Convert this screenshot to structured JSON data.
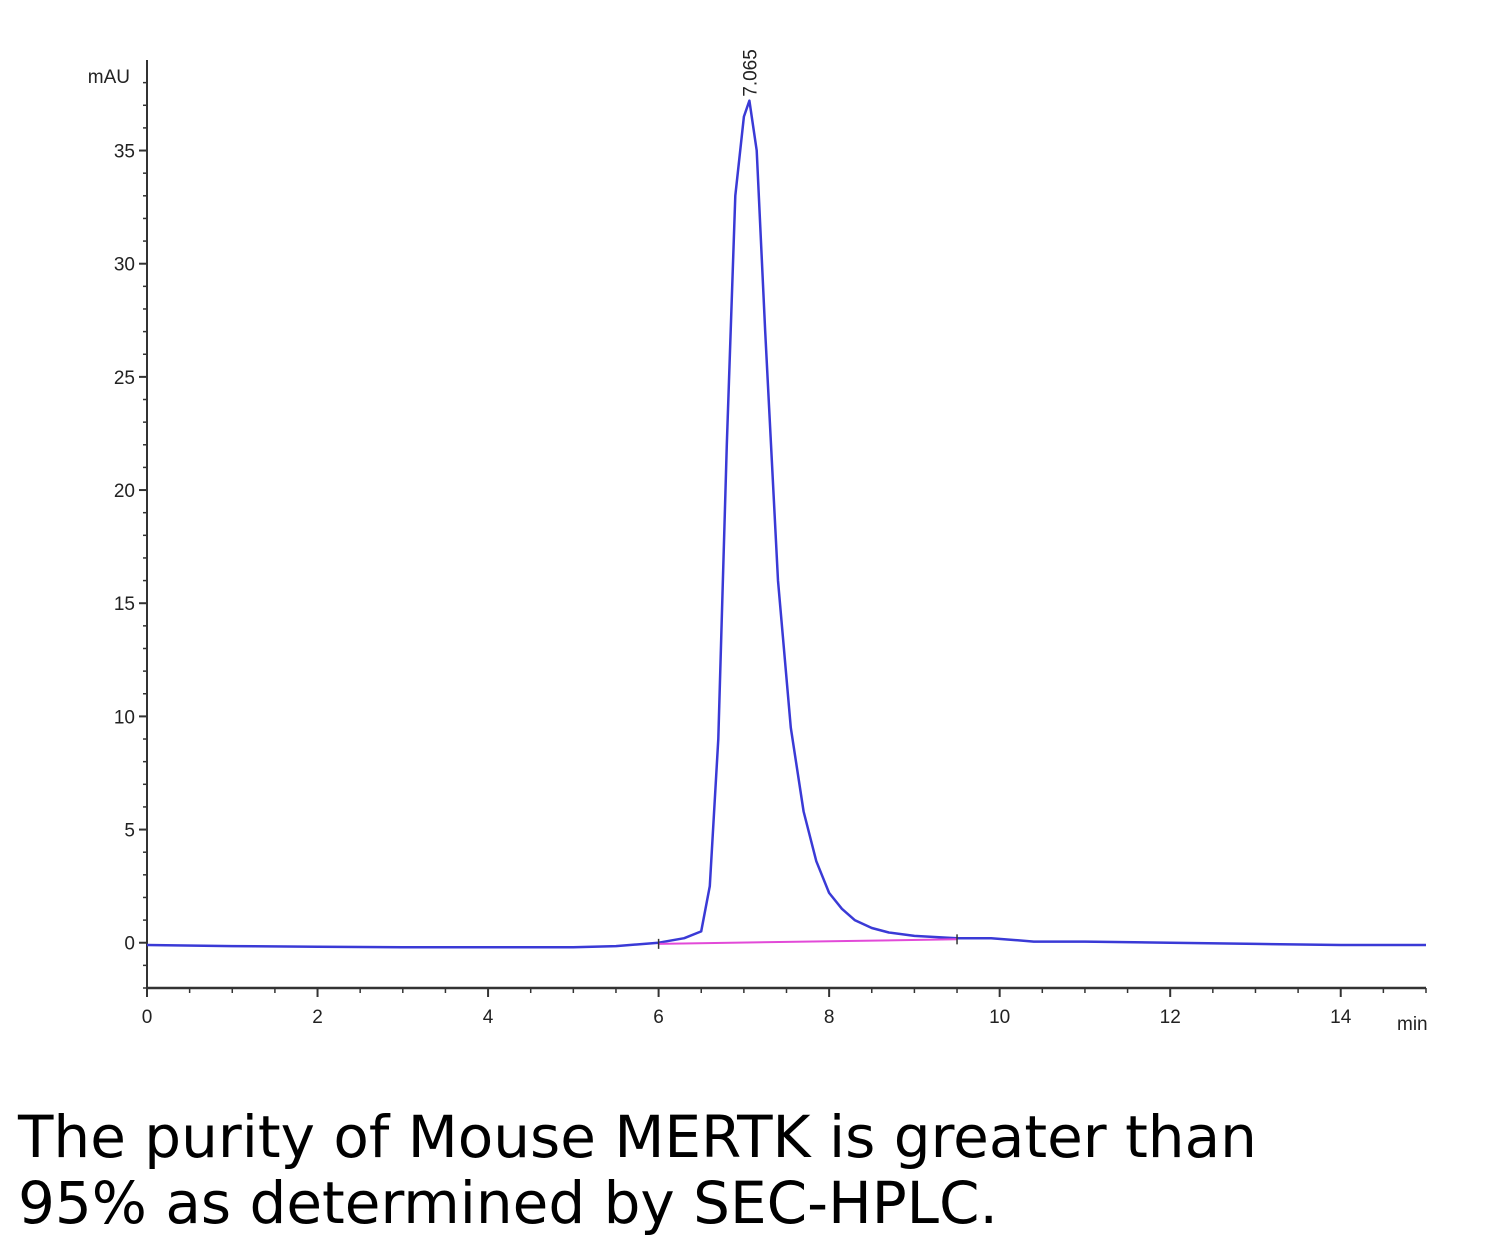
{
  "chart_data": {
    "type": "line",
    "xlabel": "min",
    "ylabel": "mAU",
    "xlim": [
      0,
      15
    ],
    "ylim": [
      -2,
      39
    ],
    "x_ticks": [
      "0",
      "2",
      "4",
      "6",
      "8",
      "10",
      "12",
      "14"
    ],
    "y_ticks": [
      "0",
      "5",
      "10",
      "15",
      "20",
      "25",
      "30",
      "35"
    ],
    "peak_label": "7.065",
    "grid": false,
    "series": [
      {
        "color": "#3a3ad6",
        "x": [
          0,
          1,
          2,
          3,
          4,
          5,
          5.5,
          6,
          6.3,
          6.5,
          6.6,
          6.7,
          6.8,
          6.9,
          7.0,
          7.065,
          7.15,
          7.25,
          7.4,
          7.55,
          7.7,
          7.85,
          8.0,
          8.15,
          8.3,
          8.5,
          8.7,
          9.0,
          9.5,
          9.9,
          10.4,
          11,
          12,
          13,
          14,
          15
        ],
        "y": [
          -0.1,
          -0.15,
          -0.18,
          -0.2,
          -0.2,
          -0.2,
          -0.15,
          0.0,
          0.2,
          0.5,
          2.5,
          9.0,
          22.0,
          33.0,
          36.5,
          37.2,
          35.0,
          27.0,
          16.0,
          9.5,
          5.8,
          3.6,
          2.2,
          1.5,
          1.0,
          0.65,
          0.45,
          0.3,
          0.2,
          0.2,
          0.05,
          0.05,
          0.0,
          -0.05,
          -0.1,
          -0.1
        ]
      },
      {
        "color": "#e24ad8",
        "x": [
          6.0,
          9.5
        ],
        "y": [
          -0.05,
          0.15
        ]
      }
    ]
  },
  "caption": {
    "line1": "The purity of Mouse MERTK is greater than",
    "line2": "95% as determined by SEC-HPLC."
  }
}
